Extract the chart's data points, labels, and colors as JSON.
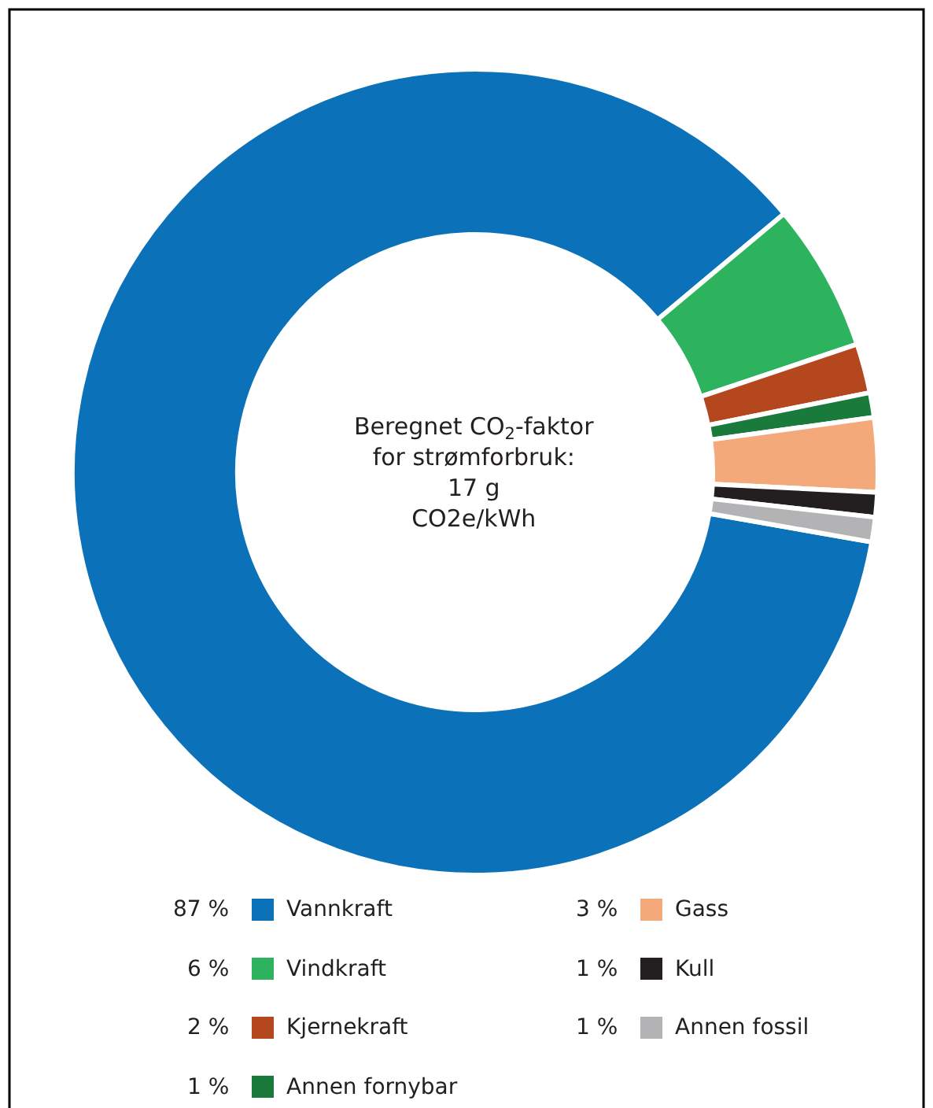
{
  "chart_data": {
    "type": "donut",
    "annotations": [
      "Beregnet CO$_{2}$-faktor\nfor strømforbruk:\n17 g\nCO2e/kWh"
    ],
    "categories": [
      "Vannkraft",
      "Vindkraft",
      "Kjernekraft",
      "Annen fornybar",
      "Gass",
      "Kull",
      "Annen fossil"
    ],
    "values": [
      87,
      6,
      2,
      1,
      3,
      1,
      1
    ],
    "value_labels": [
      "87 %",
      "6 %",
      "2 %",
      "1 %",
      "3 %",
      "1 %",
      "1 %"
    ],
    "colors": [
      "#0b72b9",
      "#2db35d",
      "#b5471f",
      "#1a7a3c",
      "#f4a97a",
      "#231f20",
      "#b3b3b5"
    ],
    "legend": "bottom"
  }
}
